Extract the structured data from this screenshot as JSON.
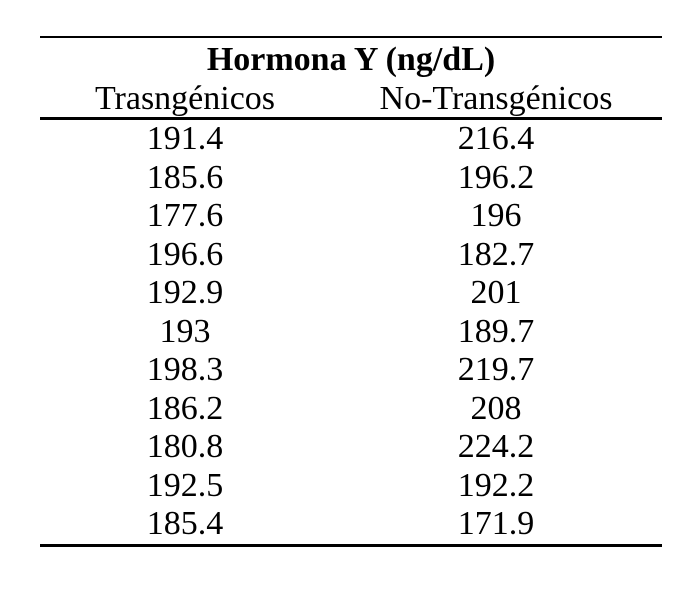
{
  "page": {
    "background_color": "#ffffff",
    "text_color": "#000000"
  },
  "chart_data": {
    "type": "table",
    "title": "Hormona Y (ng/dL)",
    "columns": [
      "Trasngénicos",
      "No-Transgénicos"
    ],
    "rows": [
      [
        191.4,
        216.4
      ],
      [
        185.6,
        196.2
      ],
      [
        177.6,
        196
      ],
      [
        196.6,
        182.7
      ],
      [
        192.9,
        201
      ],
      [
        193,
        189.7
      ],
      [
        198.3,
        219.7
      ],
      [
        186.2,
        208
      ],
      [
        180.8,
        224.2
      ],
      [
        192.5,
        192.2
      ],
      [
        185.4,
        171.9
      ]
    ],
    "layout": {
      "grid": "horizontal-rules-only",
      "rules": [
        "top",
        "below-header",
        "bottom"
      ]
    }
  }
}
